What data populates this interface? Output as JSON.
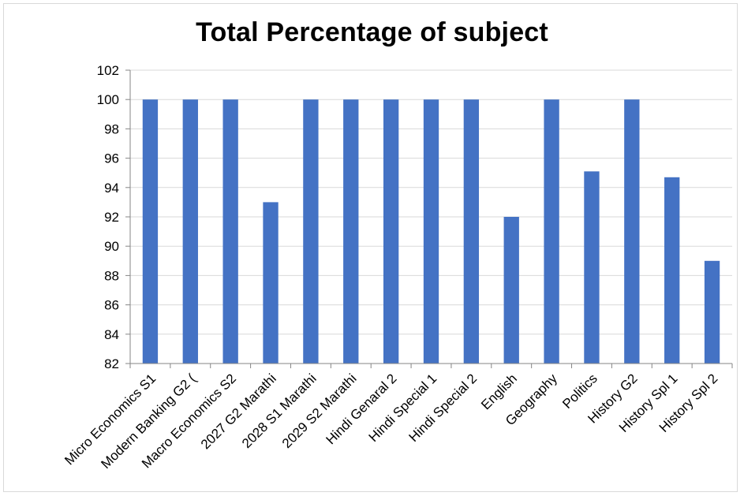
{
  "chart_data": {
    "type": "bar",
    "title": "Total Percentage of subject",
    "xlabel": "",
    "ylabel": "",
    "ylim": [
      82,
      102
    ],
    "yticks": [
      82,
      84,
      86,
      88,
      90,
      92,
      94,
      96,
      98,
      100,
      102
    ],
    "grid": true,
    "legend": "none",
    "bar_color": "#4472c4",
    "categories": [
      "Micro Economics S1",
      "Modern Banking G2 (",
      "Macro Economics S2",
      "2027 G2 Marathi",
      "2028 S1 Marathi",
      "2029 S2 Marathi",
      "Hindi Genaral 2",
      "Hindi Special 1",
      "Hindi Special 2",
      "English",
      "Geography",
      "Politics",
      "History G2",
      "History  Spl 1",
      "History Spl 2"
    ],
    "values": [
      100,
      100,
      100,
      93,
      100,
      100,
      100,
      100,
      100,
      92,
      100,
      95.1,
      100,
      94.7,
      89
    ]
  }
}
